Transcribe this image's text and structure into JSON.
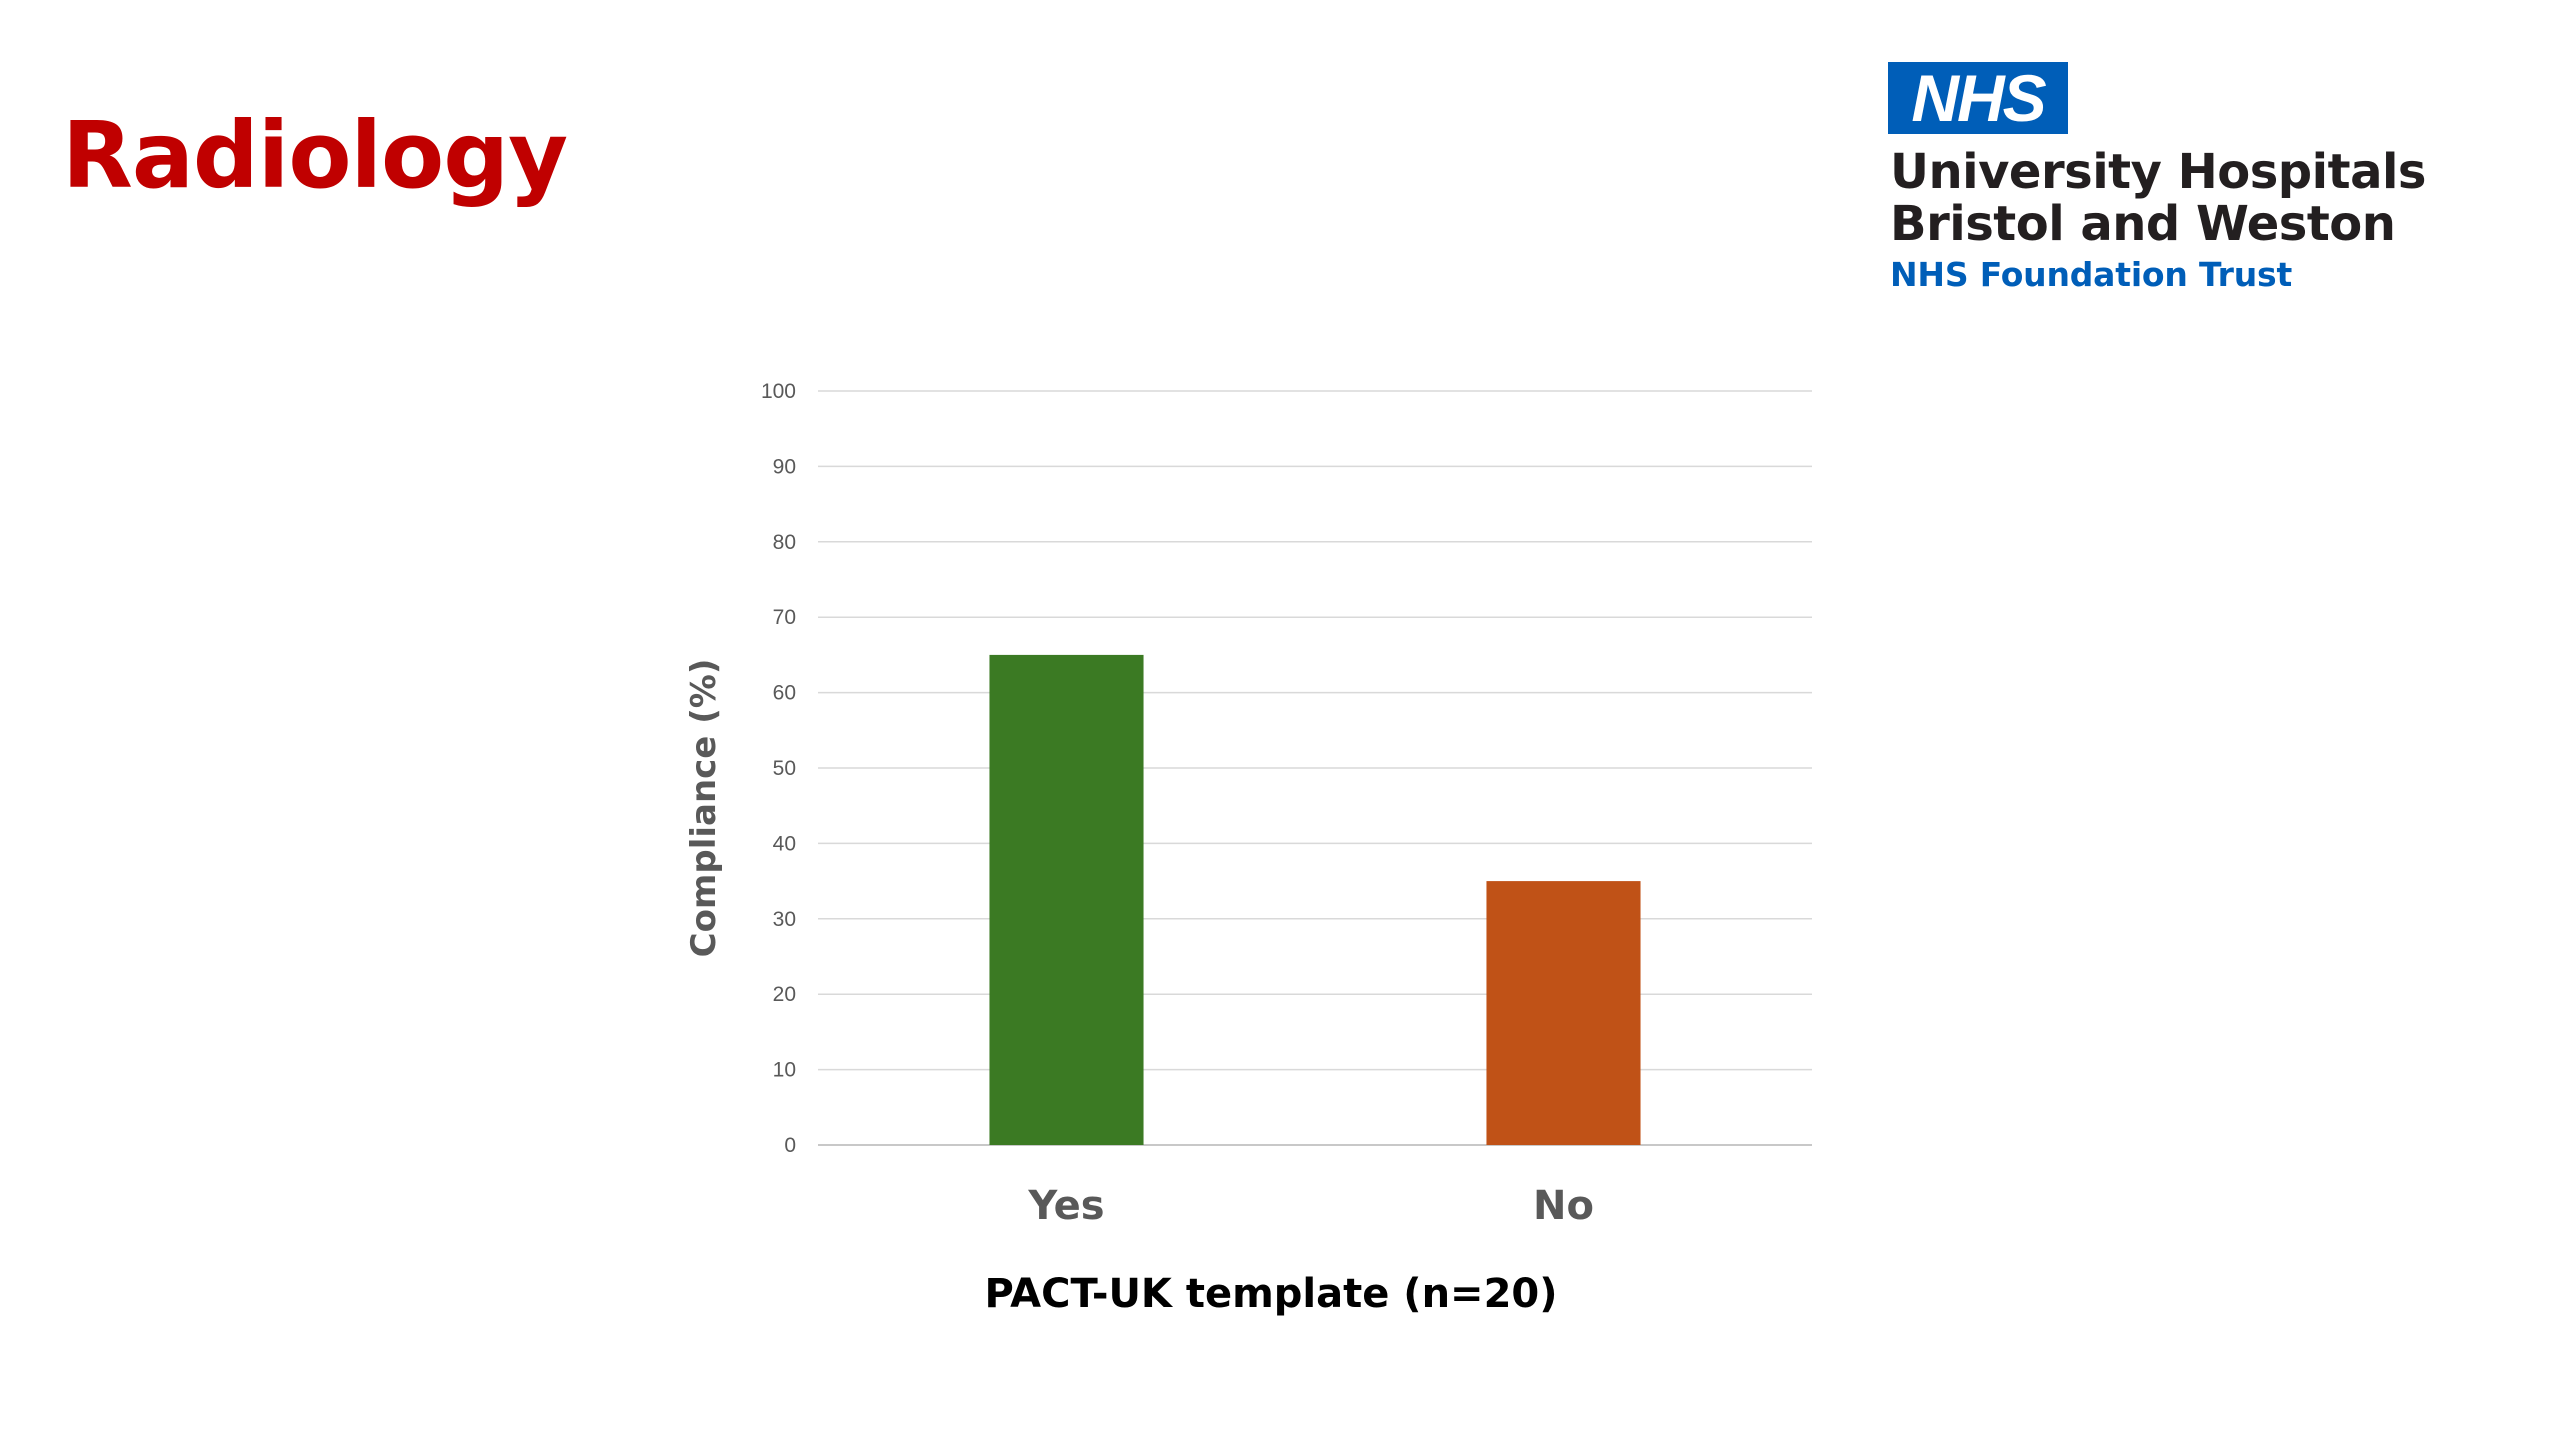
{
  "slide": {
    "title": "Radiology",
    "title_color": "#c00000"
  },
  "logo": {
    "badge_text": "NHS",
    "badge_color": "#005eb8",
    "line1": "University Hospitals",
    "line2": "Bristol and Weston",
    "line3": "NHS Foundation Trust",
    "line3_color": "#005eb8"
  },
  "chart_data": {
    "type": "bar",
    "categories": [
      "Yes",
      "No"
    ],
    "values": [
      65,
      35
    ],
    "colors": [
      "#3b7a23",
      "#c05217"
    ],
    "title": "",
    "xlabel": "PACT-UK template (n=20)",
    "ylabel": "Compliance (%)",
    "ylim": [
      0,
      100
    ],
    "yticks": [
      0,
      10,
      20,
      30,
      40,
      50,
      60,
      70,
      80,
      90,
      100
    ],
    "grid": true,
    "legend": "none"
  }
}
